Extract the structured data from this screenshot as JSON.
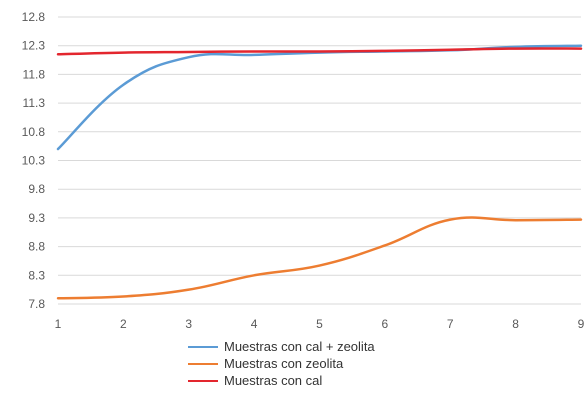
{
  "chart_data": {
    "type": "line",
    "title": "",
    "xlabel": "",
    "ylabel": "",
    "x": [
      1,
      2,
      3,
      4,
      5,
      6,
      7,
      8,
      9
    ],
    "xlim": [
      1,
      9
    ],
    "ylim": [
      7.8,
      12.8
    ],
    "yticks": [
      "7.8",
      "8.3",
      "8.8",
      "9.3",
      "9.8",
      "10.3",
      "10.8",
      "11.3",
      "11.8",
      "12.3",
      "12.8"
    ],
    "xticks": [
      "1",
      "2",
      "3",
      "4",
      "5",
      "6",
      "7",
      "8",
      "9"
    ],
    "grid": "horizontal",
    "legend_position": "bottom",
    "series": [
      {
        "name": "Muestras con cal + zeolita",
        "color": "#5B9BD5",
        "values": [
          10.5,
          11.62,
          12.1,
          12.14,
          12.18,
          12.2,
          12.22,
          12.28,
          12.3
        ]
      },
      {
        "name": "Muestras con zeolita",
        "color": "#ED7D31",
        "values": [
          7.9,
          7.93,
          8.05,
          8.3,
          8.47,
          8.82,
          9.27,
          9.26,
          9.27
        ]
      },
      {
        "name": "Muestras con cal",
        "color": "#E3262E",
        "values": [
          12.15,
          12.18,
          12.19,
          12.2,
          12.2,
          12.21,
          12.23,
          12.25,
          12.25
        ]
      }
    ]
  }
}
